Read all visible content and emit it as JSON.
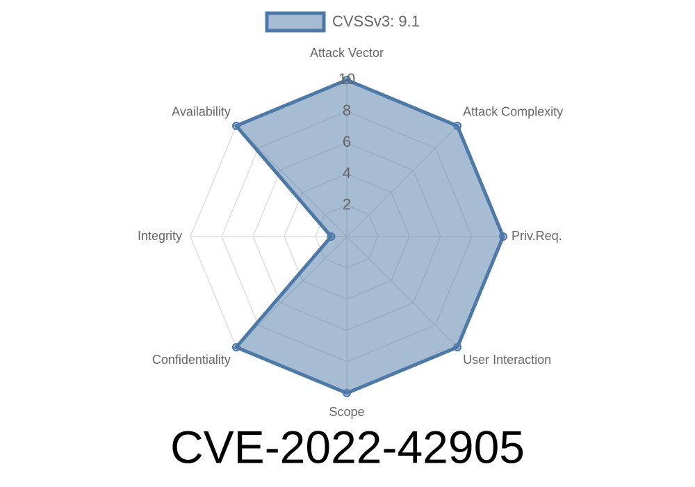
{
  "chart_data": {
    "type": "radar",
    "title": "CVE-2022-42905",
    "categories": [
      "Attack Vector",
      "Attack Complexity",
      "Priv.Req.",
      "User Interaction",
      "Scope",
      "Confidentiality",
      "Integrity",
      "Availability"
    ],
    "series": [
      {
        "name": "CVSSv3: 9.1",
        "color": "#4e79a7",
        "values": [
          10,
          10,
          10,
          10,
          10,
          10,
          1,
          10
        ]
      }
    ],
    "rlim": [
      0,
      10
    ],
    "rticks": [
      2,
      4,
      6,
      8,
      10
    ],
    "grid": true,
    "legend": "top"
  }
}
